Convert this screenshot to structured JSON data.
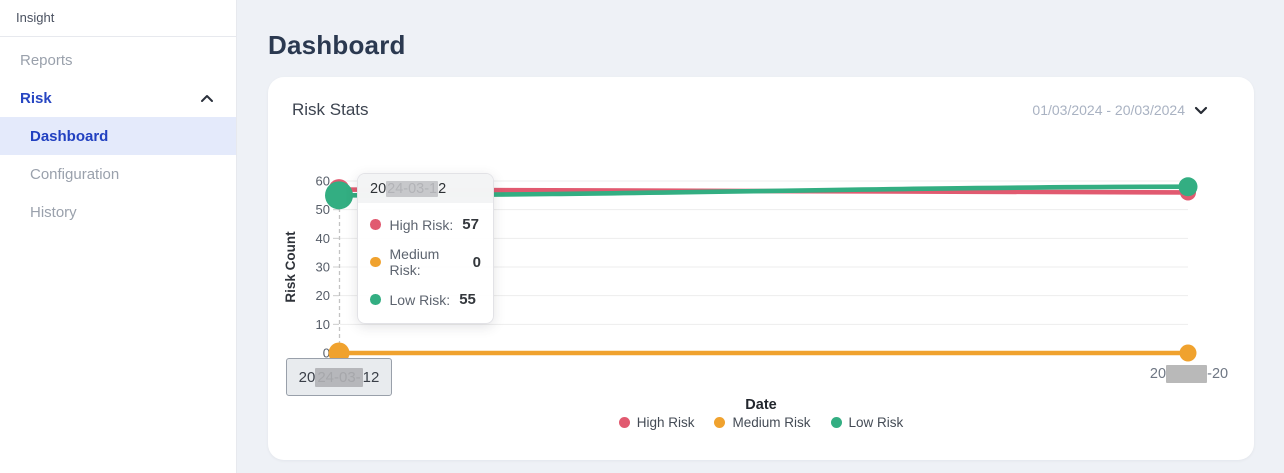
{
  "sidebar": {
    "brand": "Insight",
    "items": [
      {
        "label": "Reports"
      },
      {
        "label": "Risk"
      },
      {
        "label": "Dashboard"
      },
      {
        "label": "Configuration"
      },
      {
        "label": "History"
      }
    ]
  },
  "page": {
    "title": "Dashboard"
  },
  "card": {
    "title": "Risk Stats",
    "date_range": "01/03/2024 - 20/03/2024"
  },
  "chart_data": {
    "type": "line",
    "x": [
      "2024-03-12",
      "2024-03-20"
    ],
    "series": [
      {
        "name": "High Risk",
        "color": "#e15a70",
        "values": [
          57,
          56
        ]
      },
      {
        "name": "Medium Risk",
        "color": "#f0a22e",
        "values": [
          0,
          0
        ]
      },
      {
        "name": "Low Risk",
        "color": "#33ae82",
        "values": [
          55,
          58
        ]
      }
    ],
    "xlabel": "Date",
    "ylabel": "Risk Count",
    "ylim": [
      0,
      60
    ],
    "yticks": [
      0,
      10,
      20,
      30,
      40,
      50,
      60
    ],
    "grid": true,
    "legend_position": "bottom",
    "active_point": {
      "x": "2024-03-12",
      "values": {
        "High Risk": 57,
        "Medium Risk": 0,
        "Low Risk": 55
      }
    }
  },
  "tooltip": {
    "title_prefix": "20",
    "title_redacted": "24-03-1",
    "title_suffix": "2",
    "rows": [
      {
        "label": "High Risk:",
        "value": "57",
        "color": "#e15a70"
      },
      {
        "label": "Medium Risk:",
        "value": "0",
        "color": "#f0a22e"
      },
      {
        "label": "Low Risk:",
        "value": "55",
        "color": "#33ae82"
      }
    ]
  },
  "axis_pointer_label": {
    "prefix": "20",
    "redacted": "24-03-",
    "suffix": "12"
  },
  "x_axis_right_label": {
    "prefix": "20",
    "redacted": "24-03",
    "suffix": "-20"
  },
  "legend": [
    {
      "label": "High Risk",
      "color": "#e15a70"
    },
    {
      "label": "Medium Risk",
      "color": "#f0a22e"
    },
    {
      "label": "Low Risk",
      "color": "#33ae82"
    }
  ]
}
